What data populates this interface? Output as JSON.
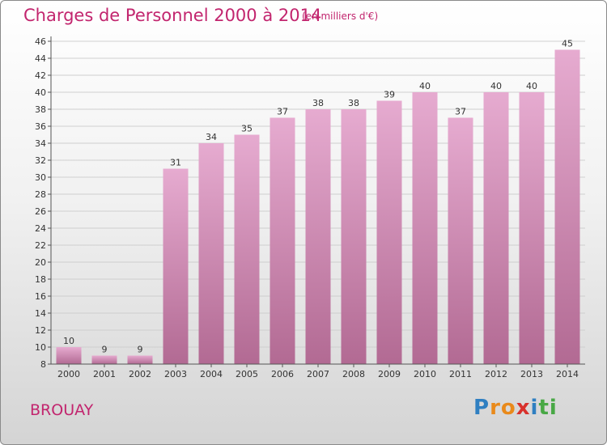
{
  "title": "Charges de Personnel 2000 à 2014",
  "subtitle": "(en milliers d'€)",
  "location": "BROUAY",
  "brand": {
    "letters": [
      "P",
      "r",
      "o",
      "x",
      "i",
      "t",
      "i"
    ],
    "colors": [
      "#2f7fc1",
      "#e98a1b",
      "#e98a1b",
      "#d8312c",
      "#2f7fc1",
      "#48a845",
      "#48a845"
    ]
  },
  "colors": {
    "bar_top": "#e6abd0",
    "bar_bottom": "#b26a93",
    "accent": "#c2256e",
    "grid": "#cfcfcf",
    "axis_text": "#333333"
  },
  "chart_data": {
    "type": "bar",
    "title": "Charges de Personnel 2000 à 2014",
    "subtitle": "(en milliers d'€)",
    "categories": [
      "2000",
      "2001",
      "2002",
      "2003",
      "2004",
      "2005",
      "2006",
      "2007",
      "2008",
      "2009",
      "2010",
      "2011",
      "2012",
      "2013",
      "2014"
    ],
    "values": [
      10,
      9,
      9,
      31,
      34,
      35,
      37,
      38,
      38,
      39,
      40,
      37,
      40,
      40,
      45
    ],
    "ylim": [
      8,
      46
    ],
    "yticks": [
      8,
      10,
      12,
      14,
      16,
      18,
      20,
      22,
      24,
      26,
      28,
      30,
      32,
      34,
      36,
      38,
      40,
      42,
      44,
      46
    ],
    "grid": true,
    "data_labels": true,
    "xlabel": "",
    "ylabel": ""
  }
}
